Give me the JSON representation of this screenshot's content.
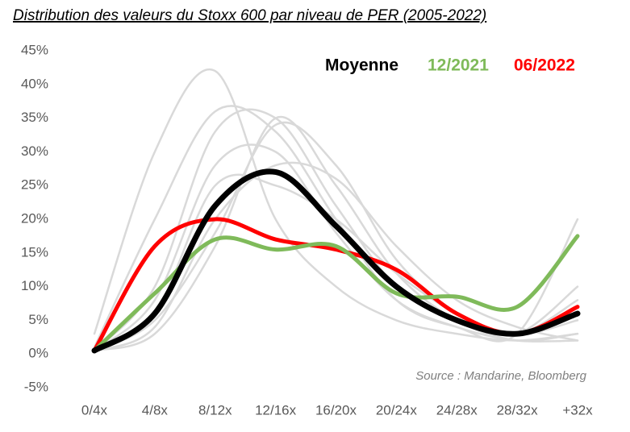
{
  "chart_data": {
    "type": "line",
    "title": "Distribution des valeurs du Stoxx 600 par niveau de PER (2005-2022)",
    "annotation": "Source : Mandarine, Bloomberg",
    "categories": [
      "0/4x",
      "4/8x",
      "8/12x",
      "12/16x",
      "16/20x",
      "20/24x",
      "24/28x",
      "28/32x",
      "+32x"
    ],
    "ylim": [
      -5,
      45
    ],
    "yticks": [
      {
        "value": -5,
        "label": "-5%"
      },
      {
        "value": 0,
        "label": "0%"
      },
      {
        "value": 5,
        "label": "5%"
      },
      {
        "value": 10,
        "label": "10%"
      },
      {
        "value": 15,
        "label": "15%"
      },
      {
        "value": 20,
        "label": "20%"
      },
      {
        "value": 25,
        "label": "25%"
      },
      {
        "value": 30,
        "label": "30%"
      },
      {
        "value": 35,
        "label": "35%"
      },
      {
        "value": 40,
        "label": "40%"
      },
      {
        "value": 45,
        "label": "45%"
      }
    ],
    "background_color": "#d9d9d9",
    "background_series": [
      [
        3,
        30,
        42,
        20,
        10,
        5,
        3,
        2,
        3
      ],
      [
        1,
        20,
        36,
        33,
        20,
        8,
        4,
        3,
        20
      ],
      [
        0.5,
        10,
        33,
        35,
        22,
        10,
        5,
        3,
        10
      ],
      [
        0.5,
        5,
        18,
        34,
        28,
        14,
        6,
        3,
        5
      ],
      [
        0.5,
        3,
        16,
        35,
        25,
        12,
        5,
        2,
        3
      ],
      [
        0.5,
        8,
        28,
        30,
        18,
        8,
        4,
        2,
        2
      ],
      [
        0.5,
        4,
        20,
        28,
        26,
        16,
        8,
        4,
        2
      ],
      [
        0.5,
        6,
        25,
        25,
        20,
        12,
        6,
        3,
        8
      ]
    ],
    "series": [
      {
        "name": "Moyenne",
        "color": "#000000",
        "values": [
          0.5,
          6,
          22,
          27,
          19,
          10,
          5,
          3,
          6
        ]
      },
      {
        "name": "12/2021",
        "color": "#7fba5a",
        "values": [
          0.5,
          9,
          17,
          15.5,
          16,
          9,
          8.5,
          7,
          17.5
        ]
      },
      {
        "name": "06/2022",
        "color": "#ff0000",
        "values": [
          0.5,
          16,
          20,
          17,
          15.5,
          12.5,
          6,
          3,
          7
        ]
      }
    ]
  }
}
